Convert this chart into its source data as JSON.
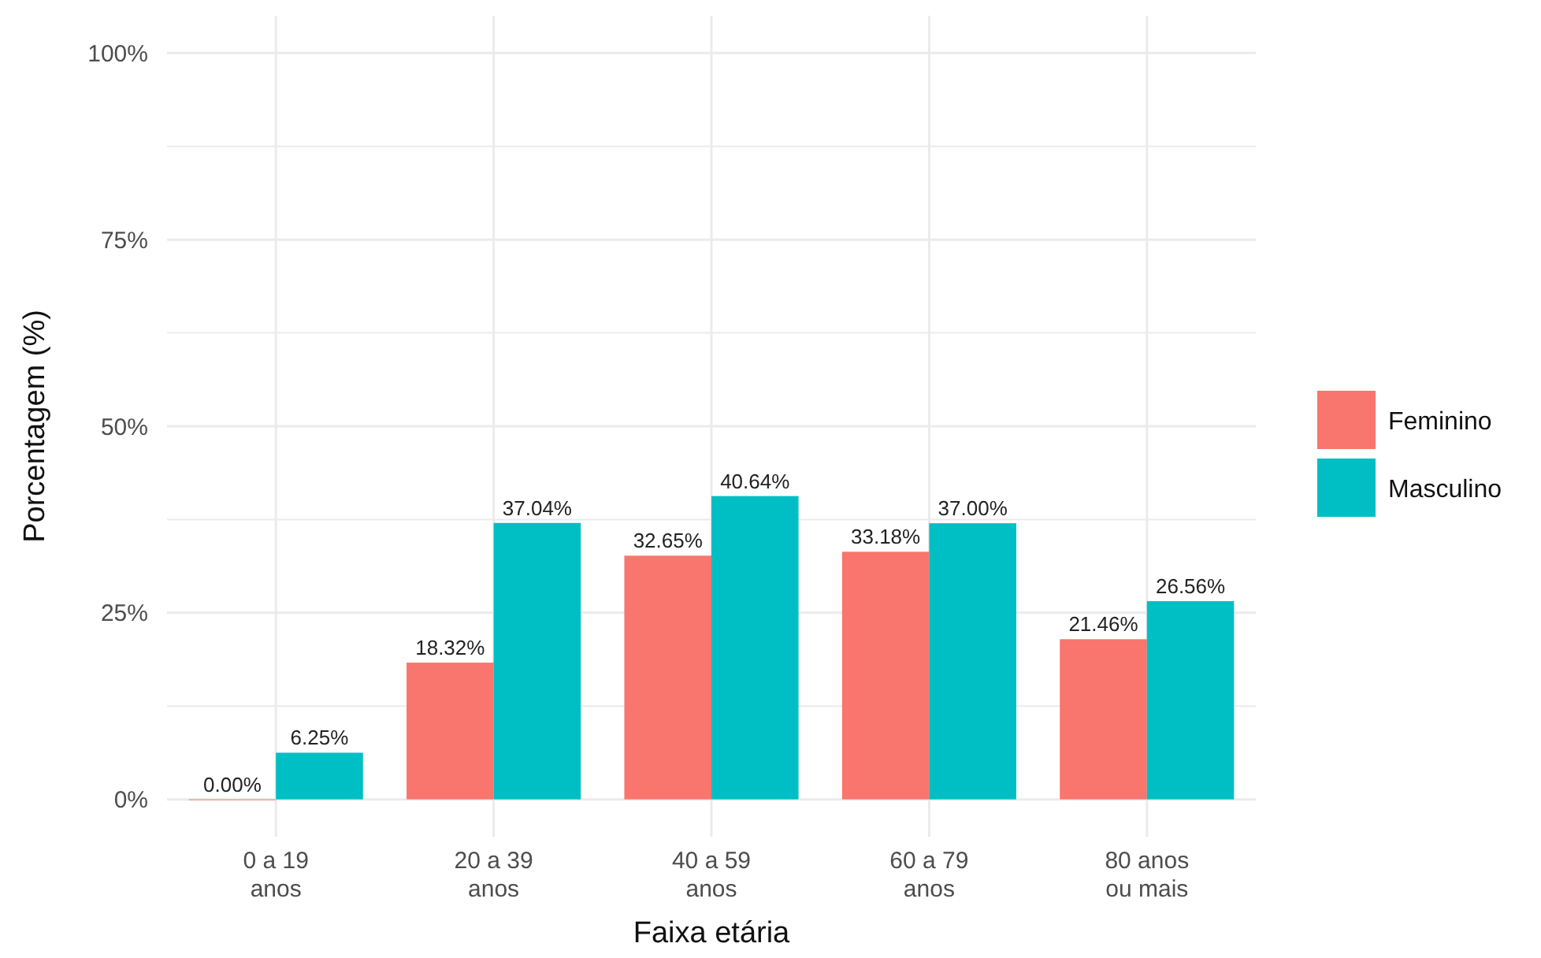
{
  "chart_data": {
    "type": "bar",
    "xlabel": "Faixa etária",
    "ylabel": "Porcentagem (%)",
    "categories": [
      "0 a 19\nanos",
      "20 a 39\nanos",
      "40 a 59\nanos",
      "60 a 79\nanos",
      "80 anos\nou mais"
    ],
    "series": [
      {
        "name": "Feminino",
        "color": "#f8766d",
        "values": [
          0.0,
          18.32,
          32.65,
          33.18,
          21.46
        ],
        "value_labels": [
          "0.00%",
          "18.32%",
          "32.65%",
          "33.18%",
          "21.46%"
        ]
      },
      {
        "name": "Masculino",
        "color": "#00bfc4",
        "values": [
          6.25,
          37.04,
          40.64,
          37.0,
          26.56
        ],
        "value_labels": [
          "6.25%",
          "37.04%",
          "40.64%",
          "37.00%",
          "26.56%"
        ]
      }
    ],
    "ylim": [
      -5,
      105
    ],
    "yticks": [
      {
        "value": 0,
        "label": "0%"
      },
      {
        "value": 12.5,
        "label": null
      },
      {
        "value": 25,
        "label": "25%"
      },
      {
        "value": 37.5,
        "label": null
      },
      {
        "value": 50,
        "label": "50%"
      },
      {
        "value": 62.5,
        "label": null
      },
      {
        "value": 75,
        "label": "75%"
      },
      {
        "value": 87.5,
        "label": null
      },
      {
        "value": 100,
        "label": "100%"
      }
    ],
    "grid": true,
    "legend": "right"
  }
}
